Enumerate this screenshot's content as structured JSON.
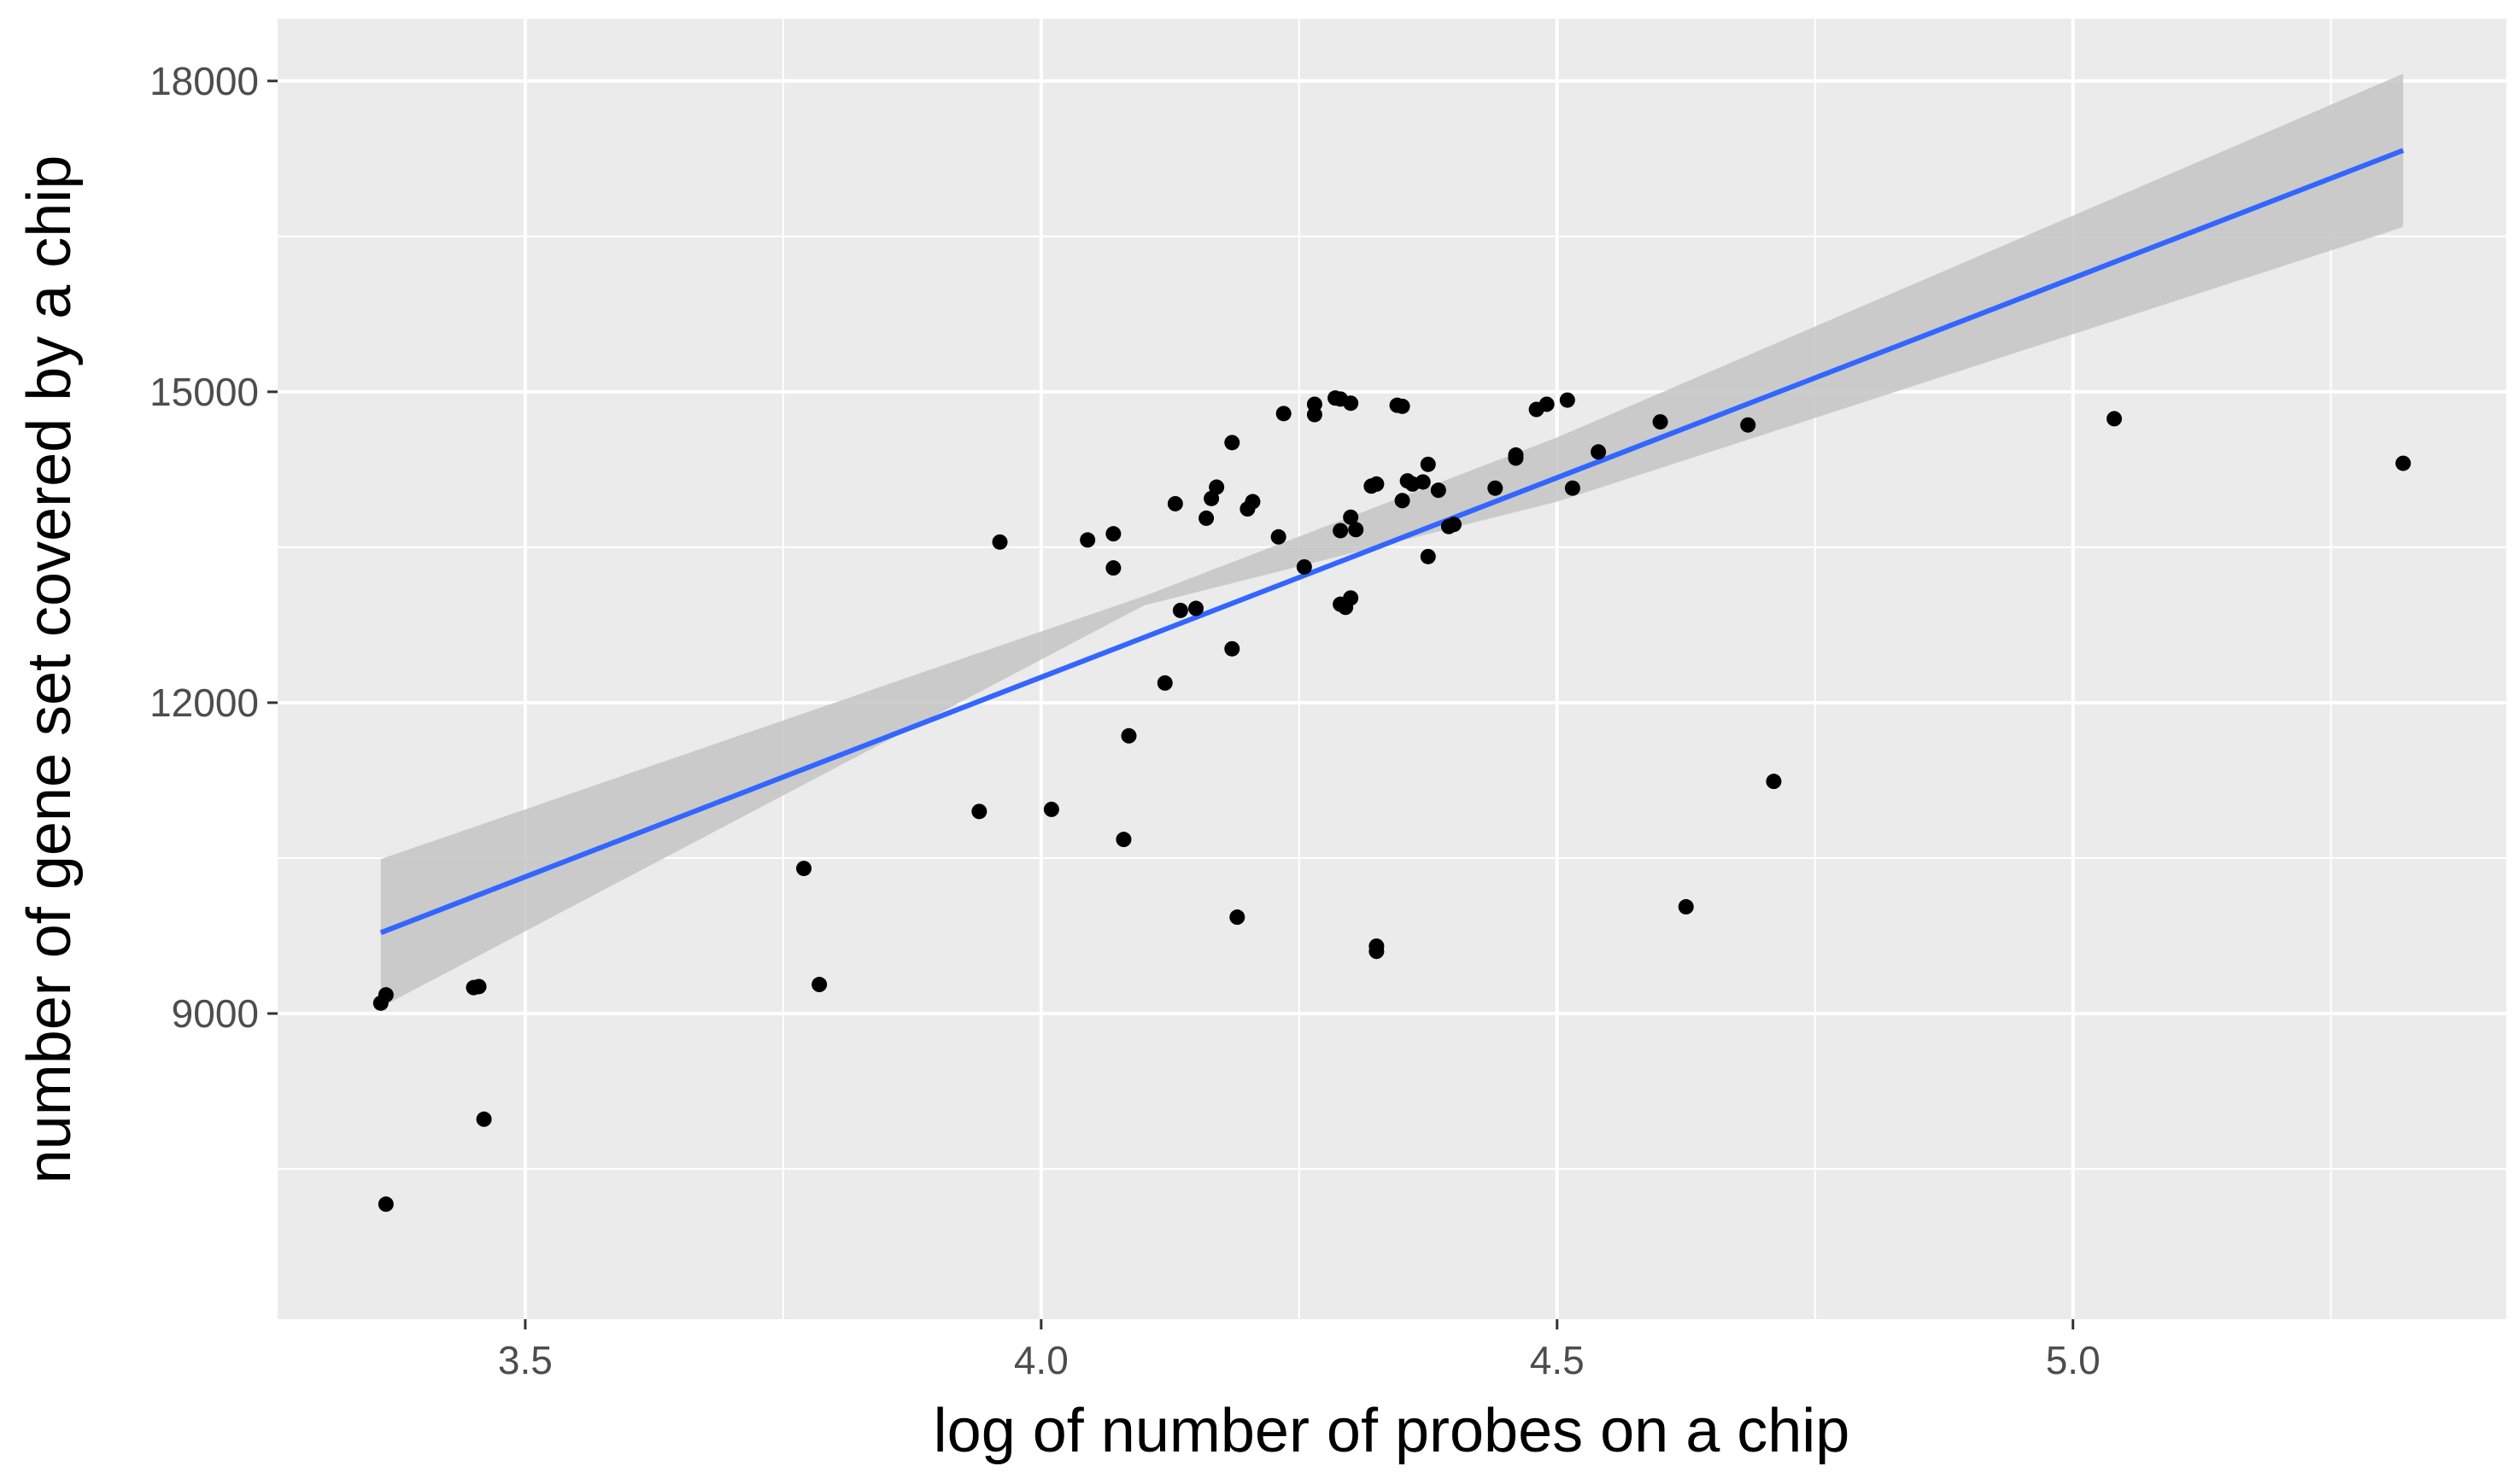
{
  "chart_data": {
    "type": "scatter",
    "title": "",
    "xlabel": "log of number of probes on a chip",
    "ylabel": "number of gene set covered by a chip",
    "xlim": [
      3.26,
      5.42
    ],
    "ylim": [
      6050,
      18600
    ],
    "x_ticks": [
      3.5,
      4.0,
      4.5,
      5.0
    ],
    "x_tick_labels": [
      "3.5",
      "4.0",
      "4.5",
      "5.0"
    ],
    "x_minor": [
      3.75,
      4.25,
      4.75,
      5.25
    ],
    "y_ticks": [
      9000,
      12000,
      15000,
      18000
    ],
    "y_tick_labels": [
      "9000",
      "12000",
      "15000",
      "18000"
    ],
    "y_minor": [
      7500,
      10500,
      13500,
      16500
    ],
    "grid": true,
    "colors": {
      "panel": "#ebebeb",
      "grid": "#ffffff",
      "points": "#000000",
      "fit_line": "#3366ff",
      "ribbon": "#c4c4c4",
      "tick_text": "#4d4d4d"
    },
    "points": [
      [
        3.36,
        9100
      ],
      [
        3.365,
        9180
      ],
      [
        3.365,
        7160
      ],
      [
        3.45,
        9250
      ],
      [
        3.455,
        9260
      ],
      [
        3.46,
        7980
      ],
      [
        3.77,
        10400
      ],
      [
        3.785,
        9280
      ],
      [
        3.94,
        10950
      ],
      [
        3.96,
        13550
      ],
      [
        4.01,
        10970
      ],
      [
        4.045,
        13570
      ],
      [
        4.07,
        13630
      ],
      [
        4.07,
        13300
      ],
      [
        4.08,
        10680
      ],
      [
        4.085,
        11680
      ],
      [
        4.12,
        12190
      ],
      [
        4.13,
        13920
      ],
      [
        4.135,
        12890
      ],
      [
        4.15,
        12910
      ],
      [
        4.16,
        13780
      ],
      [
        4.165,
        13970
      ],
      [
        4.17,
        14080
      ],
      [
        4.185,
        14510
      ],
      [
        4.185,
        12520
      ],
      [
        4.19,
        9930
      ],
      [
        4.2,
        13870
      ],
      [
        4.205,
        13940
      ],
      [
        4.23,
        13600
      ],
      [
        4.235,
        14790
      ],
      [
        4.255,
        13310
      ],
      [
        4.265,
        14880
      ],
      [
        4.265,
        14780
      ],
      [
        4.285,
        14940
      ],
      [
        4.29,
        14930
      ],
      [
        4.29,
        13660
      ],
      [
        4.29,
        12950
      ],
      [
        4.295,
        12920
      ],
      [
        4.3,
        14890
      ],
      [
        4.3,
        13010
      ],
      [
        4.3,
        13790
      ],
      [
        4.305,
        13670
      ],
      [
        4.32,
        14090
      ],
      [
        4.325,
        14110
      ],
      [
        4.325,
        9600
      ],
      [
        4.325,
        9650
      ],
      [
        4.345,
        14870
      ],
      [
        4.35,
        14860
      ],
      [
        4.35,
        13950
      ],
      [
        4.355,
        14140
      ],
      [
        4.36,
        14110
      ],
      [
        4.37,
        14130
      ],
      [
        4.375,
        14300
      ],
      [
        4.375,
        13410
      ],
      [
        4.385,
        14050
      ],
      [
        4.395,
        13700
      ],
      [
        4.4,
        13720
      ],
      [
        4.44,
        14070
      ],
      [
        4.46,
        14390
      ],
      [
        4.46,
        14360
      ],
      [
        4.48,
        14830
      ],
      [
        4.49,
        14880
      ],
      [
        4.51,
        14920
      ],
      [
        4.515,
        14070
      ],
      [
        4.54,
        14420
      ],
      [
        4.6,
        14710
      ],
      [
        4.625,
        10030
      ],
      [
        4.685,
        14680
      ],
      [
        4.71,
        11240
      ],
      [
        5.04,
        14740
      ],
      [
        5.32,
        14310
      ]
    ],
    "fit": {
      "x": [
        3.36,
        5.32
      ],
      "y": [
        9780,
        17330
      ],
      "ribbon_x": [
        3.36,
        4.1,
        4.5,
        5.32
      ],
      "ribbon_upper": [
        10490,
        13030,
        14560,
        18070
      ],
      "ribbon_lower": [
        9060,
        12940,
        13940,
        16590
      ]
    }
  }
}
